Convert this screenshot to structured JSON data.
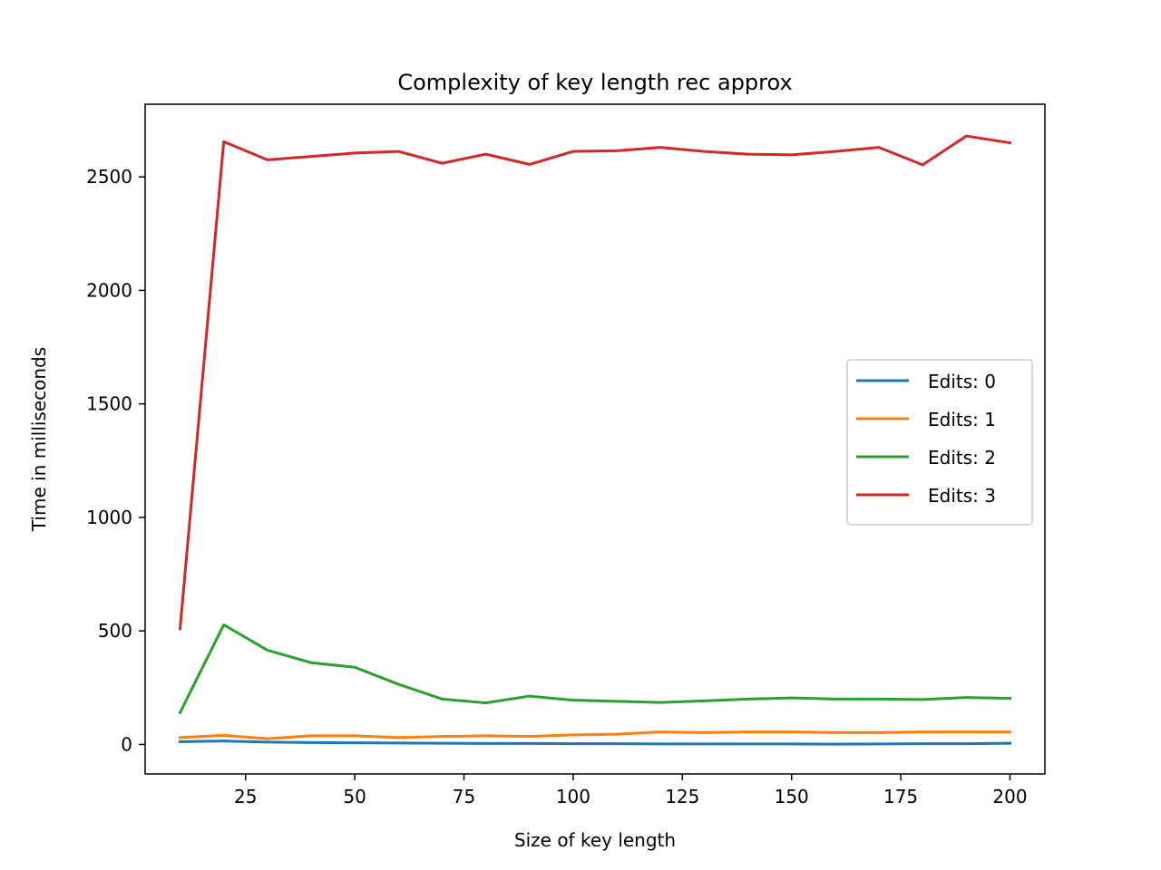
{
  "chart_data": {
    "type": "line",
    "title": "Complexity of key length rec approx",
    "xlabel": "Size of key length",
    "ylabel": "Time in milliseconds",
    "xlim": [
      2,
      208
    ],
    "ylim": [
      -130,
      2820
    ],
    "xticks": [
      25,
      50,
      75,
      100,
      125,
      150,
      175,
      200
    ],
    "yticks": [
      0,
      500,
      1000,
      1500,
      2000,
      2500
    ],
    "grid": false,
    "legend_position": "center-right",
    "x": [
      10,
      20,
      30,
      40,
      50,
      60,
      70,
      80,
      90,
      100,
      110,
      120,
      130,
      140,
      150,
      160,
      170,
      180,
      190,
      200
    ],
    "series": [
      {
        "name": "Edits: 0",
        "color": "#1f77b4",
        "values": [
          12,
          15,
          10,
          8,
          7,
          6,
          5,
          4,
          4,
          3,
          3,
          2,
          2,
          2,
          2,
          1,
          2,
          3,
          3,
          5
        ]
      },
      {
        "name": "Edits: 1",
        "color": "#ff7f0e",
        "values": [
          30,
          40,
          25,
          38,
          38,
          30,
          35,
          38,
          35,
          42,
          45,
          55,
          52,
          55,
          55,
          52,
          52,
          55,
          55,
          55
        ]
      },
      {
        "name": "Edits: 2",
        "color": "#2ca02c",
        "values": [
          140,
          527,
          415,
          360,
          340,
          265,
          200,
          183,
          213,
          195,
          190,
          185,
          192,
          200,
          205,
          200,
          200,
          198,
          207,
          203
        ]
      },
      {
        "name": "Edits: 3",
        "color": "#d62728",
        "values": [
          510,
          2655,
          2575,
          2590,
          2605,
          2612,
          2560,
          2600,
          2555,
          2612,
          2615,
          2630,
          2612,
          2600,
          2597,
          2612,
          2630,
          2553,
          2680,
          2650
        ]
      }
    ]
  }
}
